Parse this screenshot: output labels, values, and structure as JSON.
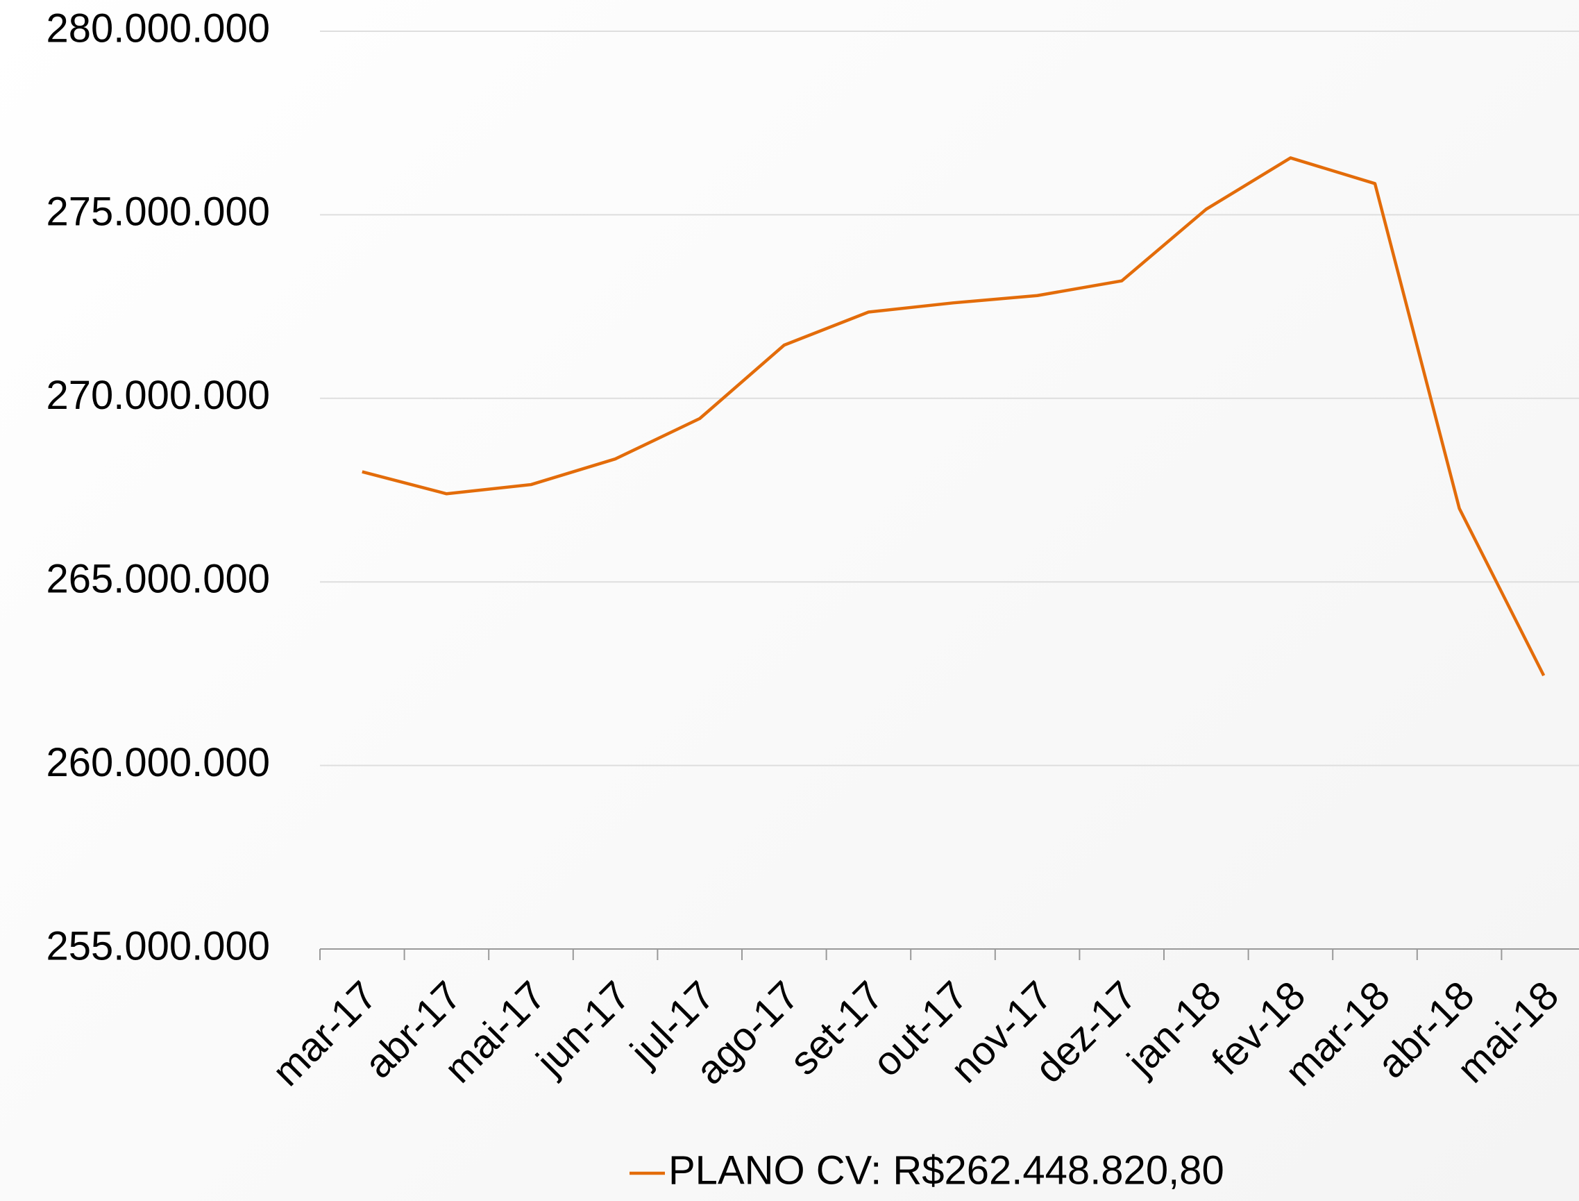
{
  "chart_data": {
    "type": "line",
    "categories": [
      "mar-17",
      "abr-17",
      "mai-17",
      "jun-17",
      "jul-17",
      "ago-17",
      "set-17",
      "out-17",
      "nov-17",
      "dez-17",
      "jan-18",
      "fev-18",
      "mar-18",
      "abr-18",
      "mai-18"
    ],
    "series": [
      {
        "name": "PLANO CV:  R$262.448.820,80",
        "color": "#e36c0a",
        "values": [
          268000000,
          267400000,
          267650000,
          268350000,
          269450000,
          271450000,
          272350000,
          272600000,
          272800000,
          273200000,
          275150000,
          276550000,
          275850000,
          267000000,
          262448820.8
        ]
      }
    ],
    "ylim": [
      255000000,
      280000000
    ],
    "yticks": [
      {
        "value": 255000000,
        "label": "255.000.000"
      },
      {
        "value": 260000000,
        "label": "260.000.000"
      },
      {
        "value": 265000000,
        "label": "265.000.000"
      },
      {
        "value": 270000000,
        "label": "270.000.000"
      },
      {
        "value": 275000000,
        "label": "275.000.000"
      },
      {
        "value": 280000000,
        "label": "280.000.000"
      }
    ],
    "grid": true,
    "legend": "bottom"
  }
}
